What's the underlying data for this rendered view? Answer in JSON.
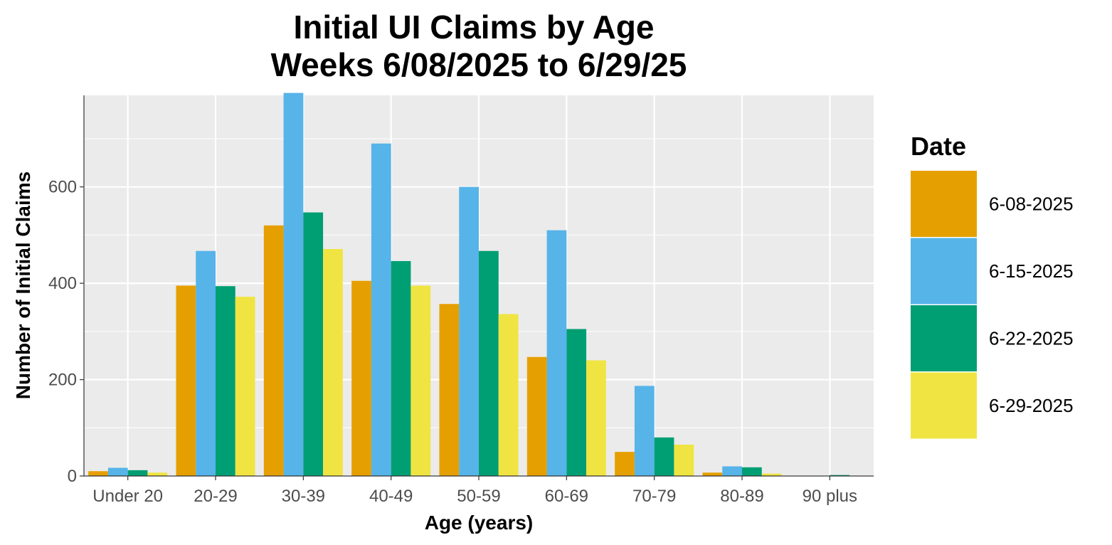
{
  "chart_data": {
    "type": "bar",
    "title": "Initial UI Claims by Age",
    "subtitle": "Weeks  6/08/2025 to 6/29/25",
    "xlabel": "Age (years)",
    "ylabel": "Number of Initial Claims",
    "ylim": [
      0,
      790
    ],
    "yticks": [
      0,
      200,
      400,
      600
    ],
    "ytick_labels": [
      "0",
      "200",
      "400",
      "600"
    ],
    "grid": true,
    "legend_title": "Date",
    "legend_position": "right",
    "categories": [
      "Under 20",
      "20-29",
      "30-39",
      "40-49",
      "50-59",
      "60-69",
      "70-79",
      "80-89",
      "90 plus"
    ],
    "series": [
      {
        "name": "6-08-2025",
        "color": "#E69F00",
        "values": [
          10,
          395,
          520,
          405,
          357,
          247,
          50,
          7,
          0
        ]
      },
      {
        "name": "6-15-2025",
        "color": "#56B4E9",
        "values": [
          17,
          467,
          795,
          690,
          600,
          510,
          187,
          20,
          0
        ]
      },
      {
        "name": "6-22-2025",
        "color": "#009E73",
        "values": [
          12,
          394,
          547,
          446,
          467,
          305,
          80,
          18,
          2
        ]
      },
      {
        "name": "6-29-2025",
        "color": "#F0E442",
        "values": [
          7,
          372,
          471,
          395,
          336,
          240,
          65,
          5,
          0
        ]
      }
    ]
  },
  "colors": {
    "panel_background": "#EBEBEB",
    "grid_line": "#FFFFFF",
    "axis_line": "#333333",
    "tick_text": "#4D4D4D"
  }
}
